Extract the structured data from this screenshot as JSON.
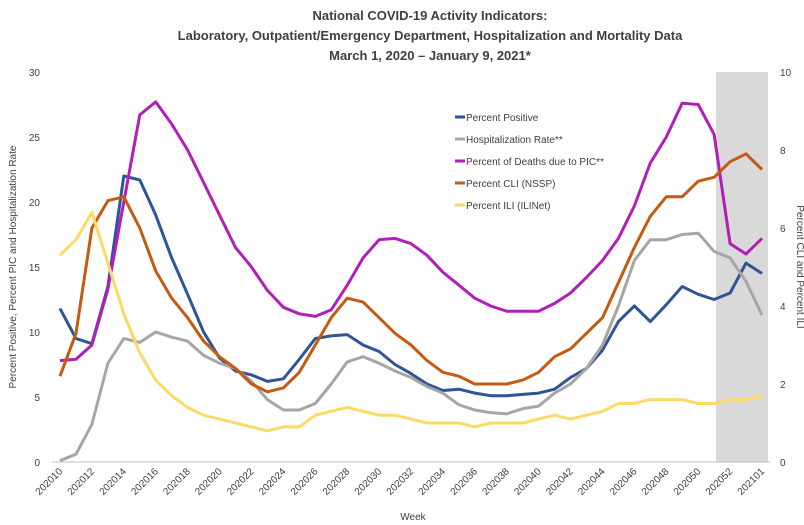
{
  "chart_data": {
    "type": "line",
    "title": [
      "National COVID-19 Activity Indicators:",
      "Laboratory, Outpatient/Emergency Department, Hospitalization and Mortality Data",
      "March 1, 2020 – January 9, 2021*"
    ],
    "x_label": "Week",
    "y_label": "Percent Positive, Percent PIC and Hospitalization Rate",
    "y2_label": "Percent CLI and Percent ILI",
    "categories": [
      "202010",
      null,
      "202012",
      null,
      "202014",
      null,
      "202016",
      null,
      "202018",
      null,
      "202020",
      null,
      "202022",
      null,
      "202024",
      null,
      "202026",
      null,
      "202028",
      null,
      "202030",
      null,
      "202032",
      null,
      "202034",
      null,
      "202036",
      null,
      "202038",
      null,
      "202040",
      null,
      "202042",
      null,
      "202044",
      null,
      "202046",
      null,
      "202048",
      null,
      "202050",
      null,
      "202052",
      null,
      "202101"
    ],
    "ylim": [
      0,
      30
    ],
    "yticks": [
      0,
      5,
      10,
      15,
      20,
      25,
      30
    ],
    "y2lim": [
      0,
      10
    ],
    "y2ticks": [
      0,
      2,
      4,
      6,
      8,
      10
    ],
    "legend": "upper right",
    "series": [
      {
        "name": "Percent Positive",
        "color": "#2e5597",
        "values": [
          11.8,
          9.5,
          9.1,
          13.5,
          22.0,
          21.7,
          19.0,
          15.7,
          12.9,
          10.0,
          8.0,
          7.0,
          6.7,
          6.2,
          6.4,
          7.9,
          9.5,
          9.7,
          9.8,
          9.0,
          8.5,
          7.5,
          6.8,
          6.0,
          5.5,
          5.6,
          5.3,
          5.1,
          5.1,
          5.2,
          5.3,
          5.6,
          6.5,
          7.2,
          8.6,
          10.8,
          12.0,
          10.8,
          12.1,
          13.5,
          12.9,
          12.5,
          13.0,
          15.3,
          14.5
        ]
      },
      {
        "name": "Hospitalization Rate**",
        "color": "#a6a6a6",
        "values": [
          0.1,
          0.6,
          2.9,
          7.6,
          9.5,
          9.2,
          10.0,
          9.6,
          9.3,
          8.2,
          7.6,
          7.2,
          6.2,
          4.8,
          4.0,
          4.0,
          4.5,
          6.0,
          7.7,
          8.1,
          7.6,
          7.0,
          6.5,
          5.8,
          5.3,
          4.4,
          4.0,
          3.8,
          3.7,
          4.1,
          4.3,
          5.3,
          6.0,
          7.2,
          9.0,
          12.0,
          15.5,
          17.1,
          17.1,
          17.5,
          17.6,
          16.2,
          15.7,
          13.9,
          11.3
        ]
      },
      {
        "name": "Percent of Deaths due to PIC**",
        "color": "#b21fb8",
        "values": [
          7.8,
          7.9,
          9.0,
          13.3,
          20.0,
          26.7,
          27.7,
          26.0,
          24.0,
          21.5,
          19.0,
          16.5,
          15.0,
          13.2,
          11.9,
          11.4,
          11.2,
          11.7,
          13.6,
          15.7,
          17.1,
          17.2,
          16.8,
          15.9,
          14.6,
          13.6,
          12.6,
          12.0,
          11.6,
          11.6,
          11.6,
          12.2,
          13.0,
          14.2,
          15.5,
          17.2,
          19.7,
          23.0,
          25.0,
          27.6,
          27.5,
          25.2,
          16.8,
          16.0,
          17.2
        ]
      },
      {
        "name": "Percent CLI (NSSP)",
        "color": "#c55a11",
        "axis": "y2",
        "values": [
          2.2,
          3.3,
          6.0,
          6.7,
          6.8,
          6.0,
          4.9,
          4.2,
          3.7,
          3.1,
          2.7,
          2.4,
          2.0,
          1.8,
          1.9,
          2.3,
          3.0,
          3.7,
          4.2,
          4.1,
          3.7,
          3.3,
          3.0,
          2.6,
          2.3,
          2.2,
          2.0,
          2.0,
          2.0,
          2.1,
          2.3,
          2.7,
          2.9,
          3.3,
          3.7,
          4.6,
          5.5,
          6.3,
          6.8,
          6.8,
          7.2,
          7.3,
          7.7,
          7.9,
          7.5
        ]
      },
      {
        "name": "Percent ILI (ILINet)",
        "color": "#ffd966",
        "axis": "y2",
        "values": [
          5.3,
          5.7,
          6.4,
          5.1,
          3.8,
          2.8,
          2.1,
          1.7,
          1.4,
          1.2,
          1.1,
          1.0,
          0.9,
          0.8,
          0.9,
          0.9,
          1.2,
          1.3,
          1.4,
          1.3,
          1.2,
          1.2,
          1.1,
          1.0,
          1.0,
          1.0,
          0.9,
          1.0,
          1.0,
          1.0,
          1.1,
          1.2,
          1.1,
          1.2,
          1.3,
          1.5,
          1.5,
          1.6,
          1.6,
          1.6,
          1.5,
          1.5,
          1.6,
          1.6,
          1.7
        ]
      }
    ]
  }
}
